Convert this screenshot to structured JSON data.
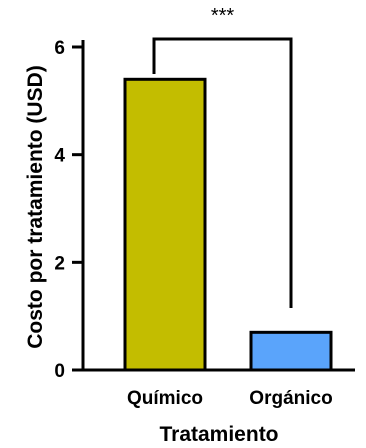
{
  "chart_data": {
    "type": "bar",
    "title": "",
    "xlabel": "Tratamiento",
    "ylabel": "Costo por tratamiento (USD)",
    "categories": [
      "Químico",
      "Orgánico"
    ],
    "values": [
      5.4,
      0.7
    ],
    "colors": [
      "#c3bd00",
      "#5aa4fb"
    ],
    "edge_color": "#000000",
    "ylim": [
      0,
      6.5
    ],
    "yticks": [
      0,
      2,
      4,
      6
    ],
    "ytick_labels": [
      "0",
      "2",
      "4",
      "6"
    ],
    "grid": false,
    "legend": false,
    "significance": {
      "label": "***",
      "between": [
        "Químico",
        "Orgánico"
      ]
    }
  }
}
